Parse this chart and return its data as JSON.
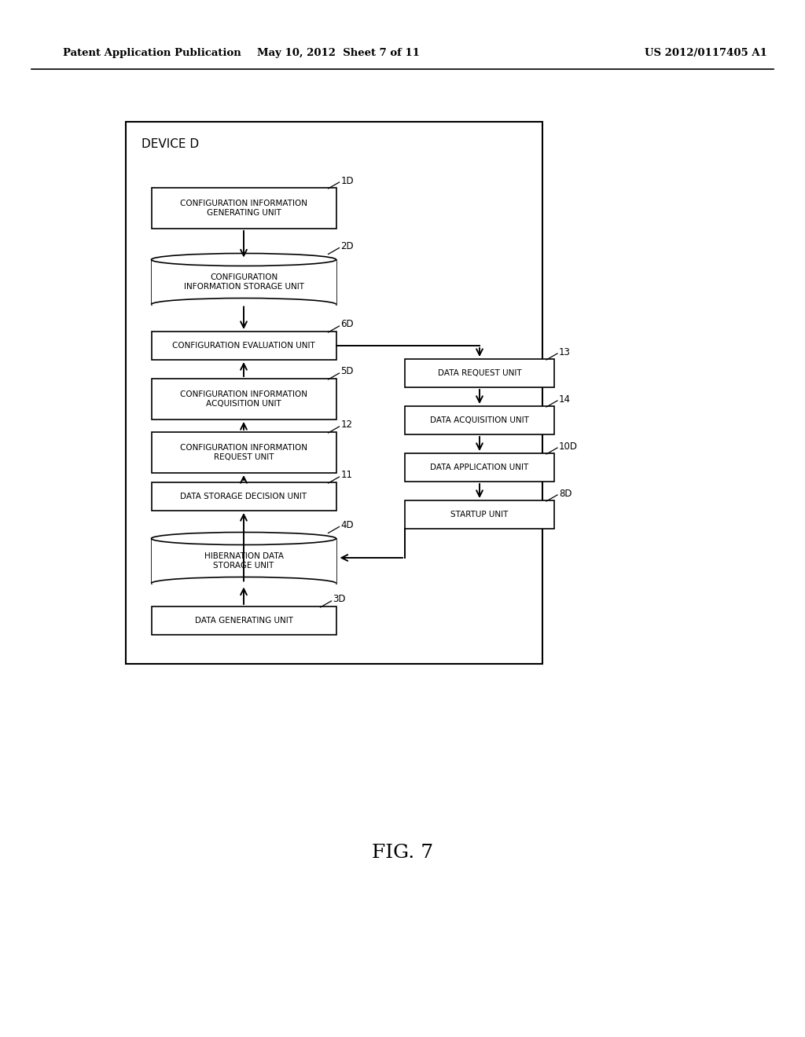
{
  "title": "FIG. 7",
  "header_left": "Patent Application Publication",
  "header_mid": "May 10, 2012  Sheet 7 of 11",
  "header_right": "US 2012/0117405 A1",
  "device_label": "DEVICE D",
  "bg_color": "#ffffff"
}
